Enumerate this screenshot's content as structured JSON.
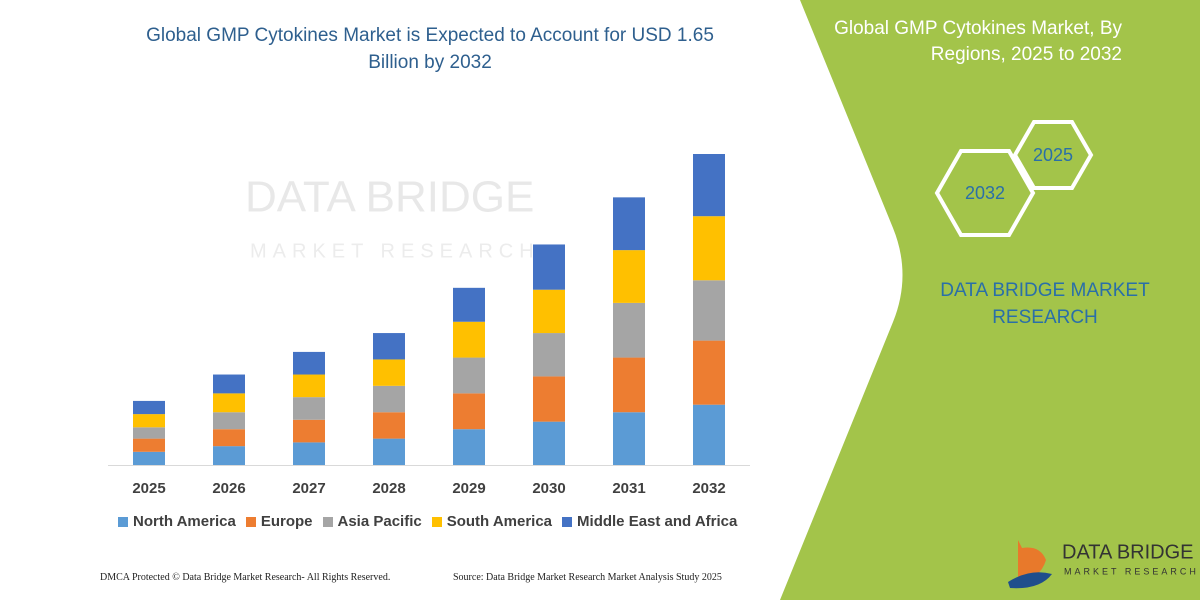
{
  "chart_data": {
    "type": "bar",
    "stacked": true,
    "title": "Global GMP Cytokines Market is Expected to Account for USD 1.65 Billion by 2032",
    "categories": [
      "2025",
      "2026",
      "2027",
      "2028",
      "2029",
      "2030",
      "2031",
      "2032"
    ],
    "series": [
      {
        "name": "North America",
        "color": "#5b9bd5",
        "values": [
          0.07,
          0.1,
          0.12,
          0.14,
          0.19,
          0.23,
          0.28,
          0.32
        ]
      },
      {
        "name": "Europe",
        "color": "#ed7d31",
        "values": [
          0.07,
          0.09,
          0.12,
          0.14,
          0.19,
          0.24,
          0.29,
          0.34
        ]
      },
      {
        "name": "Asia Pacific",
        "color": "#a5a5a5",
        "values": [
          0.06,
          0.09,
          0.12,
          0.14,
          0.19,
          0.23,
          0.29,
          0.32
        ]
      },
      {
        "name": "South America",
        "color": "#ffc000",
        "values": [
          0.07,
          0.1,
          0.12,
          0.14,
          0.19,
          0.23,
          0.28,
          0.34
        ]
      },
      {
        "name": "Middle East and Africa",
        "color": "#4472c4",
        "values": [
          0.07,
          0.1,
          0.12,
          0.14,
          0.18,
          0.24,
          0.28,
          0.33
        ]
      }
    ],
    "legend": "bottom"
  },
  "watermark": {
    "name": "DATA BRIDGE",
    "tagline": "MARKET RESEARCH"
  },
  "panel": {
    "title": "Global GMP Cytokines Market, By Regions, 2025 to 2032",
    "hexagons": [
      "2032",
      "2025"
    ],
    "brand": "DATA BRIDGE MARKET RESEARCH"
  },
  "footer": {
    "left": "DMCA Protected © Data Bridge Market Research- All Rights Reserved.",
    "right": "Source: Data Bridge Market Research  Market Analysis Study 2025"
  },
  "logo": {
    "name": "DATA BRIDGE",
    "tagline": "MARKET RESEARCH"
  }
}
